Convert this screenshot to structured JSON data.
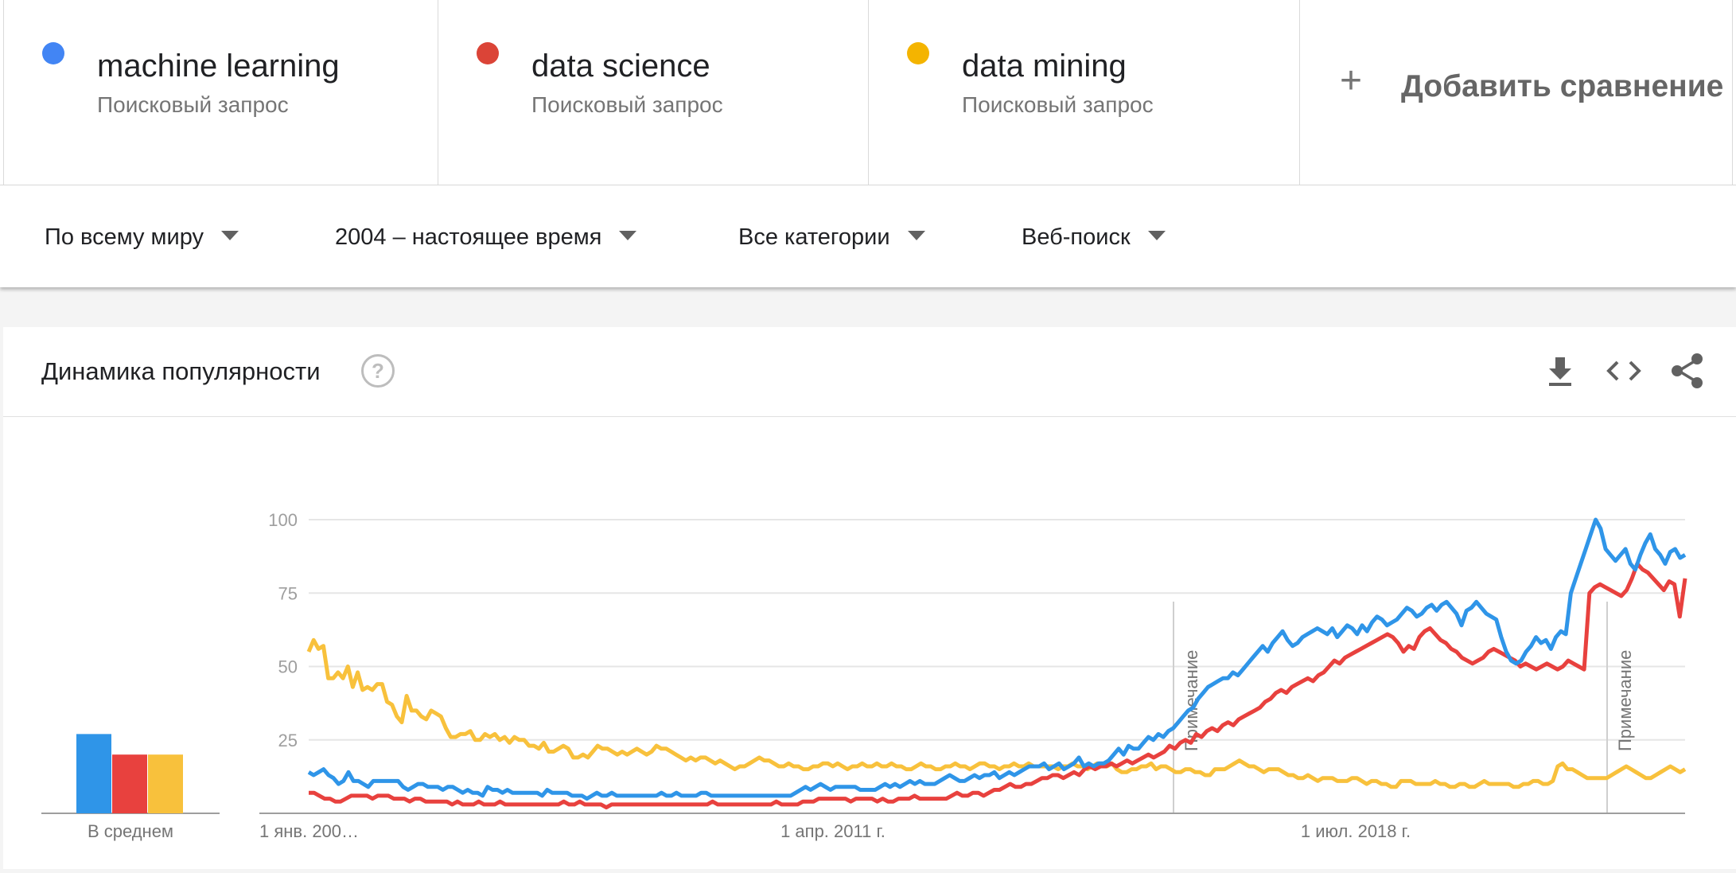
{
  "terms": [
    {
      "name": "machine learning",
      "type": "Поисковый запрос",
      "color": "#4285f4"
    },
    {
      "name": "data science",
      "type": "Поисковый запрос",
      "color": "#db4437"
    },
    {
      "name": "data mining",
      "type": "Поисковый запрос",
      "color": "#f4b400"
    }
  ],
  "add_compare": {
    "icon": "plus-icon",
    "label": "Добавить сравнение"
  },
  "filters": {
    "region": "По всему миру",
    "period": "2004 – настоящее время",
    "category": "Все категории",
    "search_type": "Веб-поиск"
  },
  "widget": {
    "title": "Динамика популярности",
    "help_icon": "question-circle-icon",
    "help_glyph": "?",
    "icons": [
      "download-icon",
      "embed-code-icon",
      "share-icon"
    ]
  },
  "chart_data": {
    "type": "line",
    "x_ticks": [
      "1 янв. 200…",
      "1 апр. 2011 г.",
      "1 июл. 2018 г."
    ],
    "ylim": [
      0,
      100
    ],
    "y_ticks": [
      25,
      50,
      75,
      100
    ],
    "grid": true,
    "annotations": [
      "Примечание",
      "Примечание"
    ],
    "average": {
      "label": "В среднем",
      "values": [
        27,
        20,
        20
      ]
    },
    "series": [
      {
        "name": "machine learning",
        "color": "#2f95e8",
        "values": [
          14,
          13,
          14,
          15,
          13,
          12,
          10,
          11,
          14,
          11,
          11,
          10,
          9,
          11,
          11,
          11,
          11,
          11,
          11,
          9,
          8,
          9,
          10,
          10,
          9,
          9,
          9,
          8,
          9,
          9,
          8,
          7,
          8,
          7,
          7,
          6,
          9,
          8,
          8,
          7,
          8,
          7,
          7,
          7,
          7,
          7,
          7,
          6,
          8,
          7,
          7,
          7,
          7,
          6,
          6,
          6,
          5,
          6,
          7,
          6,
          6,
          7,
          6,
          6,
          6,
          6,
          6,
          6,
          6,
          6,
          6,
          7,
          6,
          6,
          7,
          6,
          6,
          6,
          6,
          7,
          7,
          6,
          6,
          6,
          6,
          6,
          6,
          6,
          6,
          6,
          6,
          6,
          6,
          6,
          6,
          6,
          6,
          6,
          7,
          8,
          9,
          8,
          9,
          10,
          9,
          8,
          9,
          9,
          9,
          9,
          9,
          8,
          8,
          8,
          8,
          9,
          10,
          9,
          10,
          9,
          10,
          11,
          10,
          11,
          10,
          10,
          10,
          11,
          12,
          13,
          12,
          11,
          11,
          12,
          13,
          12,
          13,
          13,
          14,
          12,
          13,
          14,
          13,
          14,
          15,
          16,
          16,
          16,
          17,
          15,
          16,
          17,
          15,
          16,
          17,
          19,
          16,
          17,
          16,
          17,
          17,
          18,
          20,
          22,
          20,
          23,
          22,
          22,
          24,
          26,
          25,
          27,
          26,
          28,
          29,
          31,
          33,
          35,
          36,
          39,
          41,
          43,
          44,
          45,
          46,
          46,
          48,
          47,
          49,
          51,
          53,
          55,
          57,
          55,
          58,
          60,
          62,
          59,
          57,
          58,
          60,
          61,
          62,
          63,
          62,
          61,
          63,
          60,
          62,
          64,
          63,
          61,
          64,
          62,
          65,
          67,
          66,
          64,
          65,
          66,
          68,
          70,
          69,
          67,
          68,
          70,
          71,
          69,
          71,
          72,
          70,
          68,
          64,
          69,
          70,
          72,
          70,
          68,
          67,
          66,
          60,
          55,
          52,
          51,
          52,
          55,
          57,
          60,
          58,
          59,
          56,
          60,
          62,
          61,
          75,
          80,
          85,
          90,
          95,
          100,
          97,
          90,
          88,
          86,
          88,
          90,
          85,
          83,
          88,
          92,
          95,
          90,
          88,
          85,
          89,
          90,
          87,
          88
        ]
      },
      {
        "name": "data science",
        "color": "#e8413e",
        "values": [
          7,
          7,
          6,
          5,
          5,
          4,
          4,
          5,
          6,
          6,
          6,
          6,
          5,
          6,
          6,
          6,
          5,
          5,
          5,
          4,
          5,
          5,
          4,
          4,
          4,
          4,
          4,
          3,
          4,
          3,
          3,
          3,
          4,
          3,
          3,
          3,
          4,
          3,
          3,
          3,
          3,
          3,
          3,
          3,
          3,
          3,
          3,
          3,
          4,
          3,
          3,
          4,
          3,
          3,
          3,
          3,
          2,
          3,
          3,
          3,
          3,
          3,
          3,
          3,
          3,
          3,
          3,
          3,
          3,
          3,
          3,
          3,
          3,
          3,
          3,
          3,
          4,
          3,
          3,
          3,
          3,
          3,
          3,
          3,
          3,
          3,
          3,
          3,
          4,
          3,
          3,
          3,
          3,
          4,
          4,
          4,
          5,
          5,
          5,
          5,
          5,
          5,
          4,
          5,
          5,
          5,
          5,
          4,
          5,
          4,
          4,
          5,
          5,
          5,
          6,
          5,
          5,
          5,
          5,
          5,
          5,
          6,
          7,
          6,
          6,
          7,
          7,
          6,
          7,
          8,
          8,
          9,
          10,
          9,
          9,
          10,
          10,
          11,
          12,
          12,
          13,
          13,
          12,
          13,
          14,
          13,
          15,
          16,
          15,
          16,
          16,
          17,
          16,
          17,
          18,
          17,
          18,
          19,
          20,
          19,
          20,
          21,
          23,
          22,
          24,
          25,
          24,
          27,
          26,
          28,
          29,
          28,
          30,
          31,
          30,
          32,
          33,
          34,
          35,
          36,
          38,
          39,
          41,
          42,
          41,
          43,
          44,
          45,
          46,
          45,
          47,
          48,
          50,
          52,
          51,
          53,
          54,
          55,
          56,
          57,
          58,
          59,
          60,
          61,
          60,
          58,
          55,
          57,
          56,
          60,
          62,
          63,
          61,
          59,
          58,
          56,
          55,
          53,
          52,
          51,
          52,
          53,
          55,
          56,
          55,
          54,
          53,
          52,
          50,
          51,
          50,
          49,
          50,
          51,
          50,
          49,
          50,
          52,
          51,
          50,
          49,
          75,
          77,
          78,
          77,
          76,
          75,
          74,
          76,
          80,
          85,
          83,
          82,
          80,
          78,
          76,
          79,
          78,
          67,
          80
        ]
      },
      {
        "name": "data mining",
        "color": "#f8c13c",
        "values": [
          55,
          59,
          56,
          57,
          46,
          46,
          48,
          46,
          50,
          43,
          48,
          42,
          43,
          42,
          44,
          44,
          38,
          37,
          33,
          31,
          40,
          35,
          35,
          33,
          32,
          35,
          34,
          33,
          29,
          26,
          26,
          27,
          27,
          28,
          25,
          25,
          27,
          26,
          27,
          25,
          26,
          24,
          26,
          25,
          25,
          23,
          23,
          22,
          24,
          21,
          21,
          22,
          23,
          22,
          19,
          19,
          20,
          19,
          21,
          23,
          22,
          22,
          21,
          20,
          21,
          20,
          21,
          22,
          21,
          20,
          21,
          23,
          22,
          22,
          21,
          20,
          19,
          18,
          19,
          18,
          19,
          19,
          18,
          17,
          18,
          17,
          16,
          15,
          16,
          16,
          17,
          18,
          19,
          18,
          18,
          17,
          16,
          16,
          17,
          16,
          16,
          15,
          15,
          16,
          16,
          17,
          17,
          16,
          17,
          16,
          15,
          16,
          16,
          17,
          16,
          16,
          17,
          16,
          16,
          17,
          16,
          16,
          15,
          15,
          16,
          17,
          16,
          16,
          15,
          15,
          16,
          16,
          17,
          16,
          16,
          15,
          16,
          17,
          17,
          16,
          16,
          15,
          16,
          16,
          17,
          16,
          16,
          17,
          16,
          16,
          16,
          16,
          16,
          15,
          16,
          16,
          17,
          16,
          16,
          15,
          16,
          17,
          16,
          16,
          17,
          15,
          14,
          14,
          15,
          15,
          16,
          16,
          17,
          15,
          16,
          16,
          15,
          14,
          14,
          15,
          15,
          14,
          14,
          13,
          13,
          15,
          15,
          15,
          16,
          17,
          18,
          17,
          16,
          16,
          15,
          14,
          15,
          15,
          15,
          14,
          13,
          13,
          12,
          12,
          13,
          12,
          11,
          12,
          12,
          12,
          11,
          11,
          11,
          12,
          12,
          11,
          10,
          11,
          11,
          10,
          10,
          9,
          9,
          11,
          11,
          11,
          10,
          10,
          10,
          10,
          11,
          10,
          10,
          9,
          9,
          10,
          10,
          9,
          9,
          10,
          11,
          10,
          10,
          10,
          10,
          10,
          9,
          9,
          10,
          10,
          11,
          11,
          10,
          10,
          11,
          16,
          17,
          15,
          15,
          14,
          13,
          12,
          12,
          12,
          12,
          12,
          13,
          14,
          15,
          16,
          15,
          14,
          13,
          12,
          12,
          13,
          14,
          15,
          16,
          15,
          14,
          15
        ]
      }
    ]
  }
}
